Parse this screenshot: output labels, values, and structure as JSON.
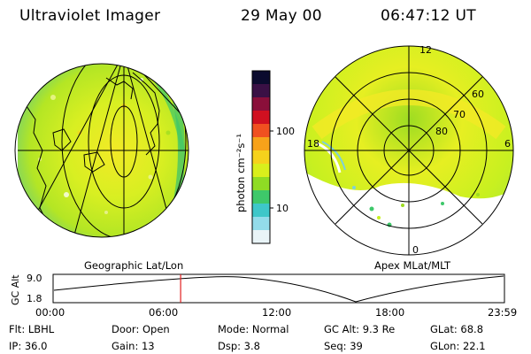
{
  "header": {
    "instrument": "Ultraviolet Imager",
    "date": "29 May 00",
    "time": "06:47:12 UT"
  },
  "colorbar": {
    "unit_label": "photon cm⁻²s⁻¹",
    "ticks": [
      "100",
      "10"
    ],
    "colors": [
      "#0b0b2e",
      "#3a1045",
      "#8a0f3a",
      "#d01020",
      "#f05020",
      "#f7a21a",
      "#f6d21c",
      "#d9ef1c",
      "#8fdc24",
      "#3ec86a",
      "#3ec7c9",
      "#93dcea",
      "#e9f4f7"
    ]
  },
  "geo_panel": {
    "label": "Geographic Lat/Lon"
  },
  "polar_panel": {
    "label": "Apex MLat/MLT",
    "mlt_labels": {
      "top": "12",
      "left": "18",
      "right": "6",
      "bottom": "0"
    },
    "lat_labels": [
      "60",
      "70",
      "80"
    ]
  },
  "altitude_plot": {
    "ylabel": "GC Alt",
    "yticks": [
      "9.0",
      "1.8"
    ],
    "xticks": [
      "00:00",
      "06:00",
      "12:00",
      "18:00",
      "23:59"
    ],
    "marker_time": "06:47",
    "marker_color": "#e02020"
  },
  "info": {
    "row1": [
      "Flt: LBHL",
      "Door: Open",
      "Mode: Normal",
      "GC Alt: 9.3 Re",
      "GLat:  68.8"
    ],
    "row2": [
      "IP: 36.0",
      "Gain: 13",
      "Dsp:     3.8",
      "Seq: 39",
      "GLon:  22.1"
    ]
  },
  "palette": {
    "aurora_green": "#c8f020",
    "aurora_yellow": "#f2ea26",
    "aurora_lime": "#9ddc22",
    "aurora_cyan": "#7fd0d8",
    "grid": "#000000"
  }
}
